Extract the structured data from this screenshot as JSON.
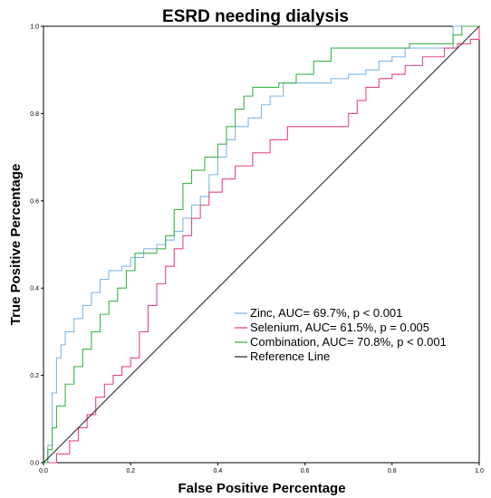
{
  "chart_data": {
    "type": "line",
    "title": "ESRD needing dialysis",
    "xlabel": "False Positive Percentage",
    "ylabel": "True Positive Percentage",
    "xlim": [
      0,
      1
    ],
    "ylim": [
      0,
      1
    ],
    "xticks": [
      "0.0",
      "0.2",
      "0.4",
      "0.6",
      "0.8",
      "1.0"
    ],
    "yticks": [
      "0.0",
      "0.2",
      "0.4",
      "0.6",
      "0.8",
      "1.0"
    ],
    "grid": false,
    "legend_position": "center-right",
    "series": [
      {
        "name": "Zinc, AUC= 69.7%, p < 0.001",
        "color": "#7fb7e6",
        "points": [
          [
            0,
            0
          ],
          [
            0.01,
            0.04
          ],
          [
            0.02,
            0.16
          ],
          [
            0.03,
            0.24
          ],
          [
            0.04,
            0.27
          ],
          [
            0.05,
            0.3
          ],
          [
            0.07,
            0.33
          ],
          [
            0.09,
            0.36
          ],
          [
            0.11,
            0.39
          ],
          [
            0.13,
            0.42
          ],
          [
            0.15,
            0.44
          ],
          [
            0.18,
            0.45
          ],
          [
            0.2,
            0.47
          ],
          [
            0.23,
            0.49
          ],
          [
            0.26,
            0.5
          ],
          [
            0.28,
            0.51
          ],
          [
            0.3,
            0.53
          ],
          [
            0.32,
            0.56
          ],
          [
            0.34,
            0.59
          ],
          [
            0.36,
            0.61
          ],
          [
            0.38,
            0.66
          ],
          [
            0.4,
            0.7
          ],
          [
            0.42,
            0.74
          ],
          [
            0.44,
            0.77
          ],
          [
            0.47,
            0.79
          ],
          [
            0.5,
            0.82
          ],
          [
            0.52,
            0.84
          ],
          [
            0.55,
            0.87
          ],
          [
            0.62,
            0.87
          ],
          [
            0.66,
            0.88
          ],
          [
            0.7,
            0.89
          ],
          [
            0.74,
            0.9
          ],
          [
            0.77,
            0.92
          ],
          [
            0.8,
            0.93
          ],
          [
            0.83,
            0.95
          ],
          [
            0.92,
            0.95
          ],
          [
            0.94,
            1.0
          ],
          [
            1.0,
            1.0
          ]
        ]
      },
      {
        "name": "Selenium, AUC= 61.5%, p = 0.005",
        "color": "#e8467c",
        "points": [
          [
            0,
            0
          ],
          [
            0.03,
            0.02
          ],
          [
            0.06,
            0.05
          ],
          [
            0.08,
            0.08
          ],
          [
            0.1,
            0.11
          ],
          [
            0.12,
            0.15
          ],
          [
            0.14,
            0.18
          ],
          [
            0.16,
            0.2
          ],
          [
            0.18,
            0.22
          ],
          [
            0.2,
            0.24
          ],
          [
            0.22,
            0.3
          ],
          [
            0.24,
            0.36
          ],
          [
            0.26,
            0.41
          ],
          [
            0.28,
            0.45
          ],
          [
            0.3,
            0.49
          ],
          [
            0.32,
            0.52
          ],
          [
            0.34,
            0.56
          ],
          [
            0.36,
            0.59
          ],
          [
            0.38,
            0.62
          ],
          [
            0.41,
            0.65
          ],
          [
            0.44,
            0.68
          ],
          [
            0.48,
            0.71
          ],
          [
            0.52,
            0.74
          ],
          [
            0.56,
            0.77
          ],
          [
            0.68,
            0.77
          ],
          [
            0.7,
            0.8
          ],
          [
            0.72,
            0.83
          ],
          [
            0.74,
            0.86
          ],
          [
            0.77,
            0.88
          ],
          [
            0.8,
            0.89
          ],
          [
            0.83,
            0.91
          ],
          [
            0.87,
            0.93
          ],
          [
            0.92,
            0.95
          ],
          [
            0.95,
            0.96
          ],
          [
            0.98,
            0.97
          ],
          [
            1.0,
            1.0
          ]
        ]
      },
      {
        "name": "Combination, AUC= 70.8%, p < 0.001",
        "color": "#3cb44b",
        "points": [
          [
            0,
            0
          ],
          [
            0.01,
            0.03
          ],
          [
            0.02,
            0.08
          ],
          [
            0.03,
            0.13
          ],
          [
            0.05,
            0.18
          ],
          [
            0.07,
            0.22
          ],
          [
            0.09,
            0.26
          ],
          [
            0.11,
            0.3
          ],
          [
            0.13,
            0.34
          ],
          [
            0.15,
            0.37
          ],
          [
            0.17,
            0.4
          ],
          [
            0.19,
            0.44
          ],
          [
            0.21,
            0.48
          ],
          [
            0.26,
            0.49
          ],
          [
            0.28,
            0.52
          ],
          [
            0.3,
            0.58
          ],
          [
            0.32,
            0.64
          ],
          [
            0.34,
            0.67
          ],
          [
            0.37,
            0.7
          ],
          [
            0.4,
            0.73
          ],
          [
            0.42,
            0.77
          ],
          [
            0.44,
            0.81
          ],
          [
            0.46,
            0.84
          ],
          [
            0.48,
            0.86
          ],
          [
            0.54,
            0.87
          ],
          [
            0.58,
            0.89
          ],
          [
            0.62,
            0.92
          ],
          [
            0.66,
            0.95
          ],
          [
            0.74,
            0.95
          ],
          [
            0.84,
            0.96
          ],
          [
            0.92,
            0.96
          ],
          [
            0.94,
            0.98
          ],
          [
            0.96,
            1.0
          ],
          [
            1.0,
            1.0
          ]
        ]
      },
      {
        "name": "Reference Line",
        "color": "#333333",
        "points": [
          [
            0,
            0
          ],
          [
            1,
            1
          ]
        ]
      }
    ]
  }
}
